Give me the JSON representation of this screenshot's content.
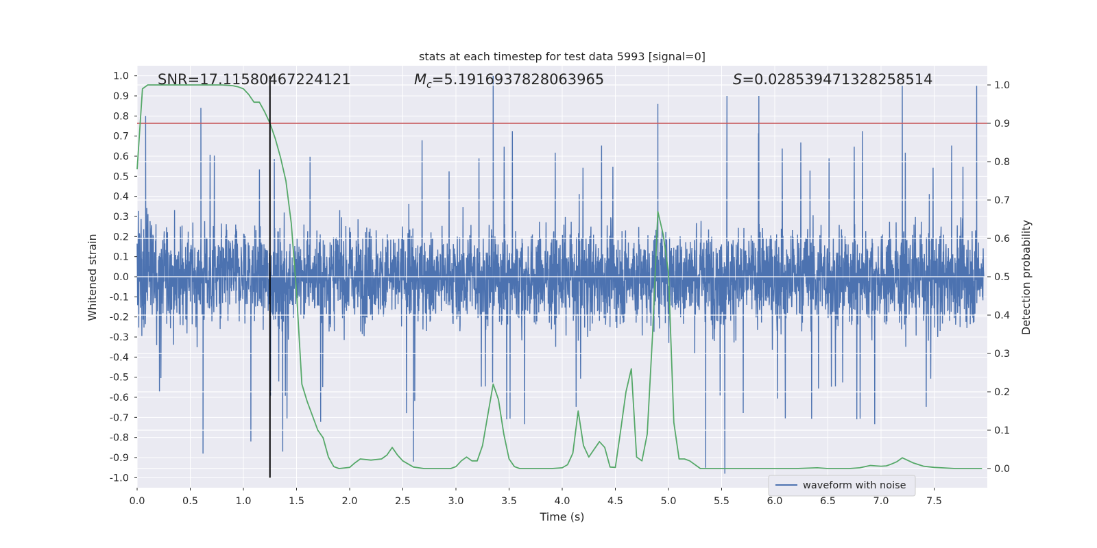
{
  "chart_data": {
    "type": "line",
    "title": "stats at each timestep for test data 5993 [signal=0]",
    "xlabel": "Time (s)",
    "ylabel": "Whitened strain",
    "ylabel_right": "Detection probability",
    "xlim": [
      0.0,
      8.0
    ],
    "ylim": [
      -1.05,
      1.05
    ],
    "ylim_right": [
      -0.05,
      1.05
    ],
    "x_ticks": [
      "0.0",
      "0.5",
      "1.0",
      "1.5",
      "2.0",
      "2.5",
      "3.0",
      "3.5",
      "4.0",
      "4.5",
      "5.0",
      "5.5",
      "6.0",
      "6.5",
      "7.0",
      "7.5"
    ],
    "y_ticks": [
      "1.0",
      "0.9",
      "0.8",
      "0.7",
      "0.6",
      "0.5",
      "0.4",
      "0.3",
      "0.2",
      "0.1",
      "0.0",
      "-0.1",
      "-0.2",
      "-0.3",
      "-0.4",
      "-0.5",
      "-0.6",
      "-0.7",
      "-0.8",
      "-0.9",
      "-1.0"
    ],
    "y_ticks_right": [
      "1.0",
      "0.9",
      "0.8",
      "0.7",
      "0.6",
      "0.5",
      "0.4",
      "0.3",
      "0.2",
      "0.1",
      "0.0"
    ],
    "grid": true,
    "legend": {
      "placement": "lower-right",
      "entries": [
        "waveform with noise"
      ]
    },
    "annotations": {
      "snr": "SNR=17.11580467224121",
      "mc_symbol": "M",
      "mc_sub": "c",
      "mc_value": "=5.1916937828063965",
      "s_symbol": "S",
      "s_value": "=0.028539471328258514"
    },
    "threshold_right": 0.9,
    "marker_time": 1.25,
    "series": [
      {
        "name": "waveform with noise",
        "axis": "left",
        "envelope": {
          "description": "dense noisy strain, amplitude about ±0.4 with spikes",
          "peaks_positive": [
            [
              0.08,
              0.8
            ],
            [
              0.6,
              0.84
            ],
            [
              3.35,
              1.0
            ],
            [
              4.9,
              0.86
            ],
            [
              5.55,
              0.9
            ],
            [
              5.85,
              0.9
            ],
            [
              7.2,
              0.95
            ],
            [
              7.9,
              0.95
            ]
          ],
          "peaks_negative": [
            [
              0.62,
              -0.88
            ],
            [
              1.07,
              -0.82
            ],
            [
              1.37,
              -0.87
            ],
            [
              2.6,
              -0.92
            ],
            [
              5.35,
              -0.95
            ],
            [
              5.53,
              -0.98
            ]
          ]
        }
      },
      {
        "name": "",
        "axis": "right",
        "color": "#55a868",
        "x": [
          0.0,
          0.05,
          0.1,
          0.2,
          0.3,
          0.4,
          0.5,
          0.6,
          0.7,
          0.8,
          0.9,
          0.95,
          1.0,
          1.05,
          1.1,
          1.15,
          1.2,
          1.25,
          1.3,
          1.35,
          1.4,
          1.45,
          1.5,
          1.55,
          1.6,
          1.7,
          1.75,
          1.8,
          1.85,
          1.9,
          2.0,
          2.05,
          2.1,
          2.2,
          2.3,
          2.35,
          2.4,
          2.45,
          2.5,
          2.6,
          2.7,
          2.8,
          2.9,
          2.95,
          3.0,
          3.05,
          3.1,
          3.15,
          3.2,
          3.25,
          3.3,
          3.35,
          3.4,
          3.45,
          3.5,
          3.55,
          3.6,
          3.7,
          3.8,
          3.9,
          4.0,
          4.05,
          4.1,
          4.15,
          4.2,
          4.25,
          4.3,
          4.35,
          4.4,
          4.45,
          4.5,
          4.55,
          4.6,
          4.65,
          4.7,
          4.75,
          4.8,
          4.85,
          4.9,
          4.95,
          5.0,
          5.05,
          5.1,
          5.15,
          5.2,
          5.3,
          5.35,
          5.4,
          5.5,
          5.6,
          5.8,
          6.0,
          6.2,
          6.4,
          6.5,
          6.7,
          6.8,
          6.9,
          6.95,
          7.0,
          7.05,
          7.1,
          7.15,
          7.2,
          7.3,
          7.4,
          7.5,
          7.7,
          7.95
        ],
        "values": [
          0.78,
          0.99,
          1.0,
          1.0,
          1.0,
          1.0,
          1.0,
          1.0,
          1.0,
          1.0,
          0.998,
          0.995,
          0.99,
          0.975,
          0.955,
          0.955,
          0.93,
          0.9,
          0.86,
          0.81,
          0.75,
          0.64,
          0.46,
          0.22,
          0.175,
          0.1,
          0.08,
          0.03,
          0.005,
          0.0,
          0.003,
          0.015,
          0.025,
          0.022,
          0.025,
          0.035,
          0.055,
          0.035,
          0.02,
          0.004,
          0.0,
          0.0,
          0.0,
          0.0,
          0.005,
          0.02,
          0.03,
          0.02,
          0.02,
          0.06,
          0.14,
          0.22,
          0.18,
          0.09,
          0.025,
          0.005,
          0.0,
          0.0,
          0.0,
          0.0,
          0.002,
          0.01,
          0.04,
          0.15,
          0.06,
          0.03,
          0.05,
          0.07,
          0.055,
          0.004,
          0.003,
          0.1,
          0.2,
          0.26,
          0.03,
          0.02,
          0.09,
          0.35,
          0.67,
          0.61,
          0.51,
          0.12,
          0.025,
          0.025,
          0.02,
          0.0,
          0.0,
          0.0,
          0.0,
          0.0,
          0.0,
          0.0,
          0.0,
          0.002,
          0.0,
          0.0,
          0.002,
          0.008,
          0.007,
          0.006,
          0.007,
          0.012,
          0.018,
          0.028,
          0.015,
          0.006,
          0.003,
          0.0,
          0.0
        ]
      }
    ]
  }
}
